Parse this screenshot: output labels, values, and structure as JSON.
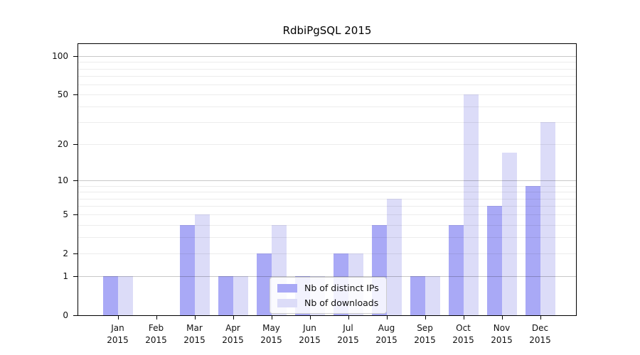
{
  "chart_data": {
    "type": "bar",
    "title": "RdbiPgSQL 2015",
    "categories": [
      "Jan",
      "Feb",
      "Mar",
      "Apr",
      "May",
      "Jun",
      "Jul",
      "Aug",
      "Sep",
      "Oct",
      "Nov",
      "Dec"
    ],
    "x_tick_year": "2015",
    "series": [
      {
        "name": "Nb of distinct IPs",
        "color": "#a9a9f6",
        "values": [
          1,
          0,
          4,
          1,
          2,
          1,
          2,
          4,
          1,
          4,
          6,
          9
        ]
      },
      {
        "name": "Nb of downloads",
        "color": "#dcdcf8",
        "values": [
          1,
          0,
          5,
          1,
          4,
          1,
          2,
          7,
          1,
          50,
          17,
          30
        ]
      }
    ],
    "y_axis": {
      "scale": "log1p",
      "tick_values": [
        0,
        1,
        2,
        5,
        10,
        20,
        50,
        100
      ],
      "tick_labels": [
        "0",
        "1",
        "2",
        "5",
        "10",
        "20",
        "50",
        "100"
      ],
      "range_max": 100
    },
    "grid": {
      "on": true,
      "major_values": [
        1,
        10,
        100
      ],
      "minor_values": [
        2,
        3,
        4,
        5,
        6,
        7,
        8,
        9,
        20,
        30,
        40,
        50,
        60,
        70,
        80,
        90
      ],
      "major_color": "#c6c6c6",
      "minor_color": "#ececec"
    },
    "legend": {
      "position": "lower-center",
      "background": "#ffffff",
      "border_color": "#cccccc"
    }
  }
}
